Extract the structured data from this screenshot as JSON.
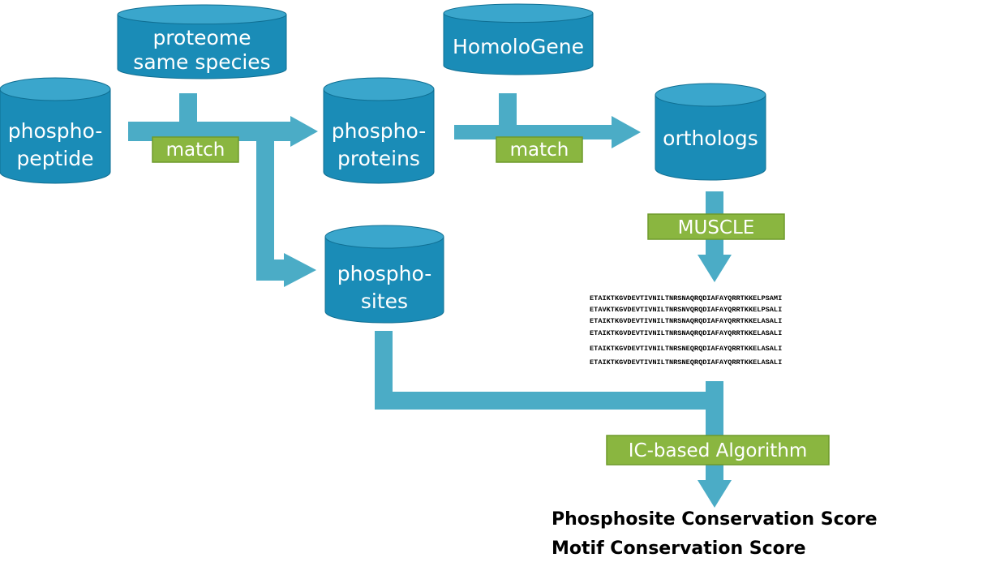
{
  "colors": {
    "cylinder_top": "#3aa6cc",
    "cylinder_body": "#1a8cb7",
    "cylinder_edge": "#0f6f93",
    "arrow": "#4bacc6",
    "process_fill": "#8ab640",
    "process_edge": "#6e9a2c",
    "text_light": "#ffffff",
    "text_dark": "#000000"
  },
  "databases": {
    "proteome": [
      "proteome",
      "same species"
    ],
    "phosphopeptide": [
      "phospho-",
      "peptide"
    ],
    "phosphoproteins": [
      "phospho-",
      "proteins"
    ],
    "homologene": [
      "HomoloGene"
    ],
    "orthologs": [
      "orthologs"
    ],
    "phosphosites": [
      "phospho-",
      "sites"
    ]
  },
  "processes": {
    "match1": "match",
    "match2": "match",
    "muscle": "MUSCLE",
    "ic_algorithm": "IC-based Algorithm"
  },
  "alignment": [
    "ETAIKTKGVDEVTIVNILTNRSNAQRQDIAFAYQRRTKKELPSAMI",
    "ETAVKTKGVDEVTIVNILTNRSNVQRQDIAFAYQRRTKKELPSALI",
    "ETAIKTKGVDEVTIVNILTNRSNAQRQDIAFAYQRRTKKELASALI",
    "ETAIKTKGVDEVTIVNILTNRSNAQRQDIAFAYQRRTKKELASALI",
    "ETAIKTKGVDEVTIVNILTNRSNEQRQDIAFAYQRRTKKELASALI",
    "ETAIKTKGVDEVTIVNILTNRSNEQRQDIAFAYQRRTKKELASALI"
  ],
  "outputs": {
    "score1": "Phosphosite Conservation Score",
    "score2": "Motif Conservation Score"
  }
}
